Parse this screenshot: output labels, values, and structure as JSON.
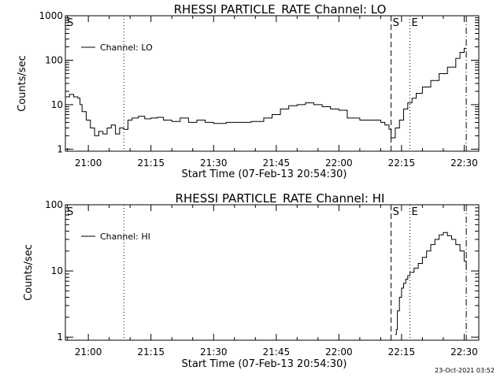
{
  "chart_data": [
    {
      "type": "line",
      "title": "RHESSI PARTICLE_RATE Channel: LO",
      "xlabel": "Start Time (07-Feb-13 20:54:30)",
      "ylabel": "Counts/sec",
      "yscale": "log",
      "ylim": [
        0.9,
        1000
      ],
      "xlim": [
        "20:54:30",
        "22:33:30"
      ],
      "xticks": [
        "21:00",
        "21:15",
        "21:30",
        "21:45",
        "22:00",
        "22:15",
        "22:30"
      ],
      "yticks": [
        "1",
        "10",
        "100",
        "1000"
      ],
      "legend": {
        "position": "top-left",
        "entries": [
          "Channel: LO"
        ]
      },
      "markers": [
        {
          "label": "S",
          "time": "20:54:30",
          "style": "none"
        },
        {
          "label": "",
          "time": "21:08:30",
          "style": "dotted"
        },
        {
          "label": "S",
          "time": "22:12:30",
          "style": "dashed"
        },
        {
          "label": "E",
          "time": "22:17:00",
          "style": "dotted"
        },
        {
          "label": "",
          "time": "22:30:30",
          "style": "dash-dot"
        }
      ],
      "series": [
        {
          "name": "Channel: LO",
          "x": [
            "20:54:30",
            "20:55:30",
            "20:56:30",
            "20:57:30",
            "20:58:00",
            "20:58:30",
            "20:59:30",
            "21:00:30",
            "21:01:30",
            "21:02:30",
            "21:03:30",
            "21:04:30",
            "21:05:30",
            "21:06:30",
            "21:07:30",
            "21:08:30",
            "21:09:30",
            "21:10:30",
            "21:12:00",
            "21:13:30",
            "21:15:00",
            "21:16:30",
            "21:18:00",
            "21:20:00",
            "21:22:00",
            "21:24:00",
            "21:26:00",
            "21:28:00",
            "21:30:00",
            "21:33:00",
            "21:36:00",
            "21:39:00",
            "21:42:00",
            "21:44:00",
            "21:46:00",
            "21:48:00",
            "21:50:00",
            "21:52:00",
            "21:54:00",
            "21:56:00",
            "21:58:00",
            "22:00:00",
            "22:02:00",
            "22:05:00",
            "22:08:00",
            "22:10:00",
            "22:11:00",
            "22:12:00",
            "22:12:30",
            "22:13:30",
            "22:14:30",
            "22:15:30",
            "22:16:30",
            "22:17:30",
            "22:18:30",
            "22:20:00",
            "22:22:00",
            "22:24:00",
            "22:26:00",
            "22:28:00",
            "22:29:00",
            "22:30:00",
            "22:30:30"
          ],
          "values": [
            15,
            17,
            15,
            14,
            10,
            7,
            4.5,
            3,
            2,
            2.5,
            2.2,
            3,
            3.5,
            2.2,
            3,
            2.8,
            4.5,
            5,
            5.5,
            4.8,
            5,
            5.2,
            4.5,
            4.2,
            5,
            4,
            4.5,
            4,
            3.8,
            4,
            4,
            4.2,
            5,
            6,
            8,
            9.5,
            10,
            11,
            10,
            9,
            8,
            7.5,
            5,
            4.5,
            4.5,
            4,
            3.5,
            2.8,
            1.8,
            3,
            4.5,
            8,
            11,
            14,
            18,
            25,
            35,
            50,
            70,
            110,
            150,
            185,
            185
          ]
        }
      ]
    },
    {
      "type": "line",
      "title": "RHESSI PARTICLE_RATE Channel: HI",
      "xlabel": "Start Time (07-Feb-13 20:54:30)",
      "ylabel": "Counts/sec",
      "yscale": "log",
      "ylim": [
        0.9,
        100
      ],
      "xlim": [
        "20:54:30",
        "22:33:30"
      ],
      "xticks": [
        "21:00",
        "21:15",
        "21:30",
        "21:45",
        "22:00",
        "22:15",
        "22:30"
      ],
      "yticks": [
        "1",
        "10",
        "100"
      ],
      "legend": {
        "position": "top-left",
        "entries": [
          "Channel: HI"
        ]
      },
      "markers": [
        {
          "label": "S",
          "time": "20:54:30",
          "style": "none"
        },
        {
          "label": "",
          "time": "21:08:30",
          "style": "dotted"
        },
        {
          "label": "S",
          "time": "22:12:30",
          "style": "dashed"
        },
        {
          "label": "E",
          "time": "22:17:00",
          "style": "dotted"
        },
        {
          "label": "",
          "time": "22:30:30",
          "style": "dash-dot"
        }
      ],
      "series": [
        {
          "name": "Channel: HI",
          "x": [
            "22:13:30",
            "22:13:45",
            "22:14:00",
            "22:14:30",
            "22:15:00",
            "22:15:30",
            "22:16:00",
            "22:16:30",
            "22:17:00",
            "22:18:00",
            "22:19:00",
            "22:20:00",
            "22:21:00",
            "22:22:00",
            "22:23:00",
            "22:24:00",
            "22:25:00",
            "22:26:00",
            "22:27:00",
            "22:28:00",
            "22:29:00",
            "22:30:00",
            "22:30:30"
          ],
          "values": [
            1.1,
            1.3,
            2.5,
            4,
            5.5,
            6.5,
            7.5,
            8.5,
            9.5,
            11,
            13,
            16,
            20,
            25,
            30,
            35,
            38,
            34,
            30,
            25,
            20,
            14,
            11
          ]
        }
      ]
    }
  ],
  "footer": {
    "timestamp": "23-Oct-2021 03:52"
  }
}
